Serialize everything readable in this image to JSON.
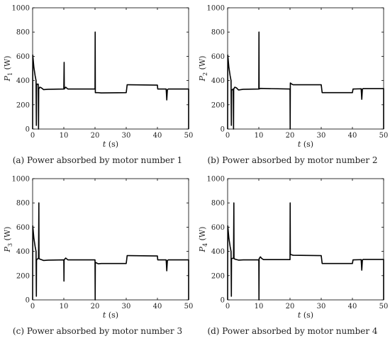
{
  "chart_data": [
    {
      "type": "line",
      "caption": "(a)  Power absorbed by motor number 1",
      "ylabel": "P",
      "ylabel_sub": "1",
      "ylabel_unit": "(W)",
      "xlabel": "t",
      "xlabel_unit": "(s)",
      "xlim": [
        0,
        50
      ],
      "ylim": [
        0,
        1000
      ],
      "xticks": [
        0,
        10,
        20,
        30,
        40,
        50
      ],
      "yticks": [
        0,
        200,
        400,
        600,
        800,
        1000
      ],
      "grid": false,
      "series": [
        {
          "points": [
            [
              0,
              0
            ],
            [
              0.05,
              610
            ],
            [
              0.4,
              510
            ],
            [
              0.8,
              440
            ],
            [
              1.1,
              400
            ],
            [
              1.2,
              30
            ],
            [
              1.25,
              350
            ],
            [
              1.3,
              370
            ],
            [
              1.8,
              370
            ],
            [
              1.9,
              0
            ],
            [
              1.95,
              330
            ],
            [
              2.3,
              345
            ],
            [
              2.8,
              340
            ],
            [
              3.5,
              325
            ],
            [
              5,
              328
            ],
            [
              10,
              330
            ],
            [
              10.1,
              550
            ],
            [
              10.15,
              330
            ],
            [
              10.6,
              345
            ],
            [
              11.3,
              330
            ],
            [
              20,
              330
            ],
            [
              20.05,
              800
            ],
            [
              20.1,
              300
            ],
            [
              21,
              300
            ],
            [
              22,
              298
            ],
            [
              30,
              300
            ],
            [
              30.3,
              365
            ],
            [
              31,
              365
            ],
            [
              40,
              362
            ],
            [
              40.1,
              330
            ],
            [
              42.8,
              330
            ],
            [
              43,
              240
            ],
            [
              43.2,
              325
            ],
            [
              43.5,
              330
            ],
            [
              50,
              330
            ],
            [
              50,
              0
            ]
          ]
        }
      ]
    },
    {
      "type": "line",
      "caption": "(b)  Power absorbed by motor number 2",
      "ylabel": "P",
      "ylabel_sub": "2",
      "ylabel_unit": "(W)",
      "xlabel": "t",
      "xlabel_unit": "(s)",
      "xlim": [
        0,
        50
      ],
      "ylim": [
        0,
        1000
      ],
      "xticks": [
        0,
        10,
        20,
        30,
        40,
        50
      ],
      "yticks": [
        0,
        200,
        400,
        600,
        800,
        1000
      ],
      "grid": false,
      "series": [
        {
          "points": [
            [
              0,
              0
            ],
            [
              0.05,
              610
            ],
            [
              0.4,
              510
            ],
            [
              0.8,
              440
            ],
            [
              1.1,
              400
            ],
            [
              1.2,
              30
            ],
            [
              1.25,
              320
            ],
            [
              1.8,
              330
            ],
            [
              1.9,
              0
            ],
            [
              1.95,
              330
            ],
            [
              2.3,
              345
            ],
            [
              2.8,
              340
            ],
            [
              3.5,
              322
            ],
            [
              5,
              328
            ],
            [
              10,
              330
            ],
            [
              10.05,
              800
            ],
            [
              10.1,
              330
            ],
            [
              10.5,
              335
            ],
            [
              20,
              330
            ],
            [
              20.05,
              0
            ],
            [
              20.1,
              380
            ],
            [
              20.6,
              370
            ],
            [
              21,
              365
            ],
            [
              30,
              365
            ],
            [
              30.3,
              300
            ],
            [
              31,
              300
            ],
            [
              40,
              300
            ],
            [
              40.2,
              330
            ],
            [
              42.8,
              332
            ],
            [
              43,
              245
            ],
            [
              43.2,
              330
            ],
            [
              43.5,
              334
            ],
            [
              50,
              334
            ],
            [
              50,
              0
            ]
          ]
        }
      ]
    },
    {
      "type": "line",
      "caption": "(c)  Power absorbed by motor number 3",
      "ylabel": "P",
      "ylabel_sub": "3",
      "ylabel_unit": "(W)",
      "xlabel": "t",
      "xlabel_unit": "(s)",
      "xlim": [
        0,
        50
      ],
      "ylim": [
        0,
        1000
      ],
      "xticks": [
        0,
        10,
        20,
        30,
        40,
        50
      ],
      "yticks": [
        0,
        200,
        400,
        600,
        800,
        1000
      ],
      "grid": false,
      "series": [
        {
          "points": [
            [
              0,
              0
            ],
            [
              0.05,
              610
            ],
            [
              0.4,
              510
            ],
            [
              0.8,
              440
            ],
            [
              1.1,
              400
            ],
            [
              1.2,
              30
            ],
            [
              1.25,
              330
            ],
            [
              1.9,
              345
            ],
            [
              2,
              800
            ],
            [
              2.05,
              340
            ],
            [
              2.5,
              335
            ],
            [
              3.5,
              325
            ],
            [
              5,
              328
            ],
            [
              10,
              330
            ],
            [
              10.05,
              155
            ],
            [
              10.1,
              330
            ],
            [
              10.6,
              345
            ],
            [
              11.3,
              330
            ],
            [
              20,
              330
            ],
            [
              20.05,
              0
            ],
            [
              20.1,
              310
            ],
            [
              21,
              298
            ],
            [
              22,
              300
            ],
            [
              30,
              300
            ],
            [
              30.3,
              365
            ],
            [
              31,
              365
            ],
            [
              40,
              362
            ],
            [
              40.1,
              330
            ],
            [
              42.8,
              330
            ],
            [
              43,
              240
            ],
            [
              43.2,
              325
            ],
            [
              43.5,
              330
            ],
            [
              50,
              330
            ],
            [
              50,
              0
            ]
          ]
        }
      ]
    },
    {
      "type": "line",
      "caption": "(d)  Power absorbed by motor number 4",
      "ylabel": "P",
      "ylabel_sub": "4",
      "ylabel_unit": "(W)",
      "xlabel": "t",
      "xlabel_unit": "(s)",
      "xlim": [
        0,
        50
      ],
      "ylim": [
        0,
        1000
      ],
      "xticks": [
        0,
        10,
        20,
        30,
        40,
        50
      ],
      "yticks": [
        0,
        200,
        400,
        600,
        800,
        1000
      ],
      "grid": false,
      "series": [
        {
          "points": [
            [
              0,
              0
            ],
            [
              0.05,
              610
            ],
            [
              0.4,
              510
            ],
            [
              0.8,
              440
            ],
            [
              1.1,
              400
            ],
            [
              1.2,
              30
            ],
            [
              1.25,
              340
            ],
            [
              1.9,
              345
            ],
            [
              2,
              800
            ],
            [
              2.05,
              340
            ],
            [
              2.5,
              335
            ],
            [
              3.5,
              328
            ],
            [
              5,
              330
            ],
            [
              10,
              330
            ],
            [
              10.05,
              0
            ],
            [
              10.1,
              340
            ],
            [
              10.5,
              355
            ],
            [
              11,
              340
            ],
            [
              11.5,
              332
            ],
            [
              20,
              332
            ],
            [
              20.05,
              800
            ],
            [
              20.1,
              375
            ],
            [
              21,
              368
            ],
            [
              30,
              365
            ],
            [
              30.3,
              300
            ],
            [
              31,
              300
            ],
            [
              40,
              300
            ],
            [
              40.2,
              330
            ],
            [
              42.8,
              332
            ],
            [
              43,
              245
            ],
            [
              43.2,
              330
            ],
            [
              43.5,
              334
            ],
            [
              50,
              334
            ],
            [
              50,
              0
            ]
          ]
        }
      ]
    }
  ]
}
